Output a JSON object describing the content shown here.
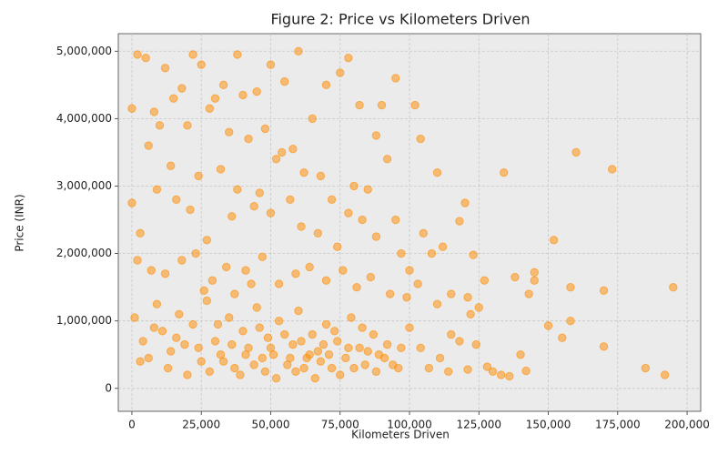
{
  "chart_data": {
    "type": "scatter",
    "title": "Figure 2: Price vs Kilometers Driven",
    "x_label": "Kilometers Driven",
    "y_label": "Price (INR)",
    "color": "#ff8c00",
    "grid": true,
    "x": [
      160000,
      173000,
      134000,
      104000,
      195000,
      192000,
      185000,
      170000,
      170000,
      158000,
      158000,
      152000,
      150000,
      145000,
      145000,
      143000,
      138000,
      140000,
      155000,
      0,
      0,
      2000,
      5000,
      22000,
      38000,
      60000,
      78000,
      75000,
      95000,
      102000,
      110000,
      120000,
      118000,
      123000,
      127000,
      130000,
      133000,
      112000,
      100000,
      92000,
      8000,
      12000,
      15000,
      18000,
      25000,
      30000,
      33000,
      40000,
      45000,
      50000,
      55000,
      65000,
      70000,
      82000,
      88000,
      90000,
      10000,
      20000,
      28000,
      35000,
      42000,
      48000,
      52000,
      58000,
      68000,
      80000,
      85000,
      6000,
      14000,
      24000,
      32000,
      38000,
      46000,
      54000,
      62000,
      72000,
      78000,
      95000,
      105000,
      3000,
      9000,
      16000,
      21000,
      27000,
      36000,
      44000,
      50000,
      57000,
      61000,
      67000,
      74000,
      83000,
      88000,
      97000,
      108000,
      115000,
      121000,
      125000,
      2000,
      7000,
      12000,
      18000,
      23000,
      29000,
      34000,
      41000,
      47000,
      53000,
      59000,
      64000,
      70000,
      76000,
      81000,
      86000,
      93000,
      99000,
      103000,
      110000,
      115000,
      122000,
      1000,
      4000,
      6000,
      9000,
      11000,
      14000,
      17000,
      19000,
      22000,
      25000,
      27000,
      30000,
      32000,
      35000,
      37000,
      40000,
      42000,
      45000,
      47000,
      49000,
      51000,
      53000,
      56000,
      58000,
      60000,
      63000,
      65000,
      67000,
      70000,
      72000,
      74000,
      77000,
      79000,
      82000,
      84000,
      87000,
      89000,
      92000,
      96000,
      100000,
      104000,
      107000,
      111000,
      114000,
      118000,
      121000,
      124000,
      128000,
      136000,
      142000,
      3000,
      8000,
      13000,
      16000,
      20000,
      24000,
      28000,
      31000,
      33000,
      36000,
      39000,
      41000,
      44000,
      46000,
      48000,
      50000,
      52000,
      55000,
      57000,
      59000,
      61000,
      62000,
      64000,
      66000,
      68000,
      69000,
      71000,
      73000,
      75000,
      78000,
      80000,
      83000,
      85000,
      88000,
      91000,
      94000,
      97000,
      43000,
      37000,
      26000
    ],
    "values": [
      3500000,
      3250000,
      3200000,
      3700000,
      1500000,
      200000,
      300000,
      1450000,
      620000,
      1500000,
      1000000,
      2200000,
      930000,
      1720000,
      1600000,
      1400000,
      1650000,
      500000,
      750000,
      4150000,
      2750000,
      4950000,
      4900000,
      4950000,
      4950000,
      5000000,
      4900000,
      4680000,
      4600000,
      4200000,
      3200000,
      2750000,
      2480000,
      1980000,
      1600000,
      250000,
      200000,
      2100000,
      1750000,
      3400000,
      4100000,
      4750000,
      4300000,
      4450000,
      4800000,
      4300000,
      4500000,
      4350000,
      4400000,
      4800000,
      4550000,
      4000000,
      4500000,
      4200000,
      3750000,
      4200000,
      3900000,
      3900000,
      4150000,
      3800000,
      3700000,
      3850000,
      3400000,
      3550000,
      3150000,
      3000000,
      2950000,
      3600000,
      3300000,
      3150000,
      3250000,
      2950000,
      2900000,
      3500000,
      3200000,
      2800000,
      2600000,
      2500000,
      2300000,
      2300000,
      2950000,
      2800000,
      2650000,
      2200000,
      2550000,
      2700000,
      2600000,
      2800000,
      2400000,
      2300000,
      2100000,
      2500000,
      2250000,
      2000000,
      2000000,
      1400000,
      1350000,
      1200000,
      1900000,
      1750000,
      1700000,
      1900000,
      2000000,
      1600000,
      1800000,
      1750000,
      1950000,
      1550000,
      1700000,
      1800000,
      1600000,
      1750000,
      1500000,
      1650000,
      1400000,
      1350000,
      1550000,
      1250000,
      800000,
      1100000,
      1050000,
      700000,
      450000,
      1250000,
      850000,
      550000,
      1100000,
      650000,
      950000,
      400000,
      1300000,
      700000,
      500000,
      1050000,
      300000,
      850000,
      600000,
      1200000,
      450000,
      750000,
      500000,
      1000000,
      350000,
      650000,
      1150000,
      450000,
      800000,
      550000,
      950000,
      300000,
      700000,
      450000,
      1050000,
      600000,
      350000,
      800000,
      500000,
      650000,
      300000,
      900000,
      600000,
      300000,
      450000,
      250000,
      700000,
      280000,
      650000,
      320000,
      180000,
      260000,
      400000,
      900000,
      300000,
      750000,
      200000,
      600000,
      250000,
      950000,
      400000,
      650000,
      200000,
      500000,
      350000,
      900000,
      250000,
      600000,
      150000,
      800000,
      450000,
      250000,
      700000,
      300000,
      500000,
      150000,
      400000,
      650000,
      500000,
      850000,
      200000,
      600000,
      300000,
      900000,
      550000,
      250000,
      450000,
      350000,
      600000,
      1550000,
      1400000,
      1450000
    ],
    "xlim": [
      -4900,
      204900
    ],
    "ylim": [
      -340000,
      5260000
    ],
    "xticks": [
      0,
      {
        "value": 25000,
        "label": "25,000"
      },
      {
        "value": 50000,
        "label": "50,000"
      },
      {
        "value": 75000,
        "label": "75,000"
      },
      {
        "value": 100000,
        "label": "100,000"
      },
      {
        "value": 125000,
        "label": "125,000"
      },
      {
        "value": 150000,
        "label": "150,000"
      },
      {
        "value": 175000,
        "label": "175,000"
      },
      {
        "value": 200000,
        "label": "200,000"
      }
    ],
    "yticks": [
      0,
      {
        "value": 1000000,
        "label": "1,000,000"
      },
      {
        "value": 2000000,
        "label": "2,000,000"
      },
      {
        "value": 3000000,
        "label": "3,000,000"
      },
      {
        "value": 4000000,
        "label": "4,000,000"
      },
      {
        "value": 5000000,
        "label": "5,000,000"
      }
    ]
  }
}
